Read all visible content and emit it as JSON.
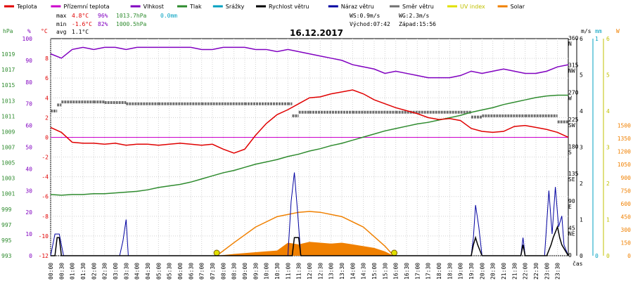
{
  "title": "16.12.2017",
  "legend": [
    {
      "label": "Teplota",
      "color": "#e00000"
    },
    {
      "label": "Přízemní teplota",
      "color": "#cc00cc"
    },
    {
      "label": "Vlhkost",
      "color": "#8000c0"
    },
    {
      "label": "Tlak",
      "color": "#2e8b2e"
    },
    {
      "label": "Srážky",
      "color": "#00a0c0"
    },
    {
      "label": "Rychlost větru",
      "color": "#000000"
    },
    {
      "label": "Náraz větru",
      "color": "#0000a0"
    },
    {
      "label": "Směr větru",
      "color": "#707070"
    },
    {
      "label": "UV index",
      "color": "#e0e000"
    },
    {
      "label": "Solar",
      "color": "#f08000"
    }
  ],
  "stats": {
    "max_label": "max",
    "max_temp": "4.8°C",
    "max_hum": "96%",
    "max_press": "1013.7hPa",
    "max_rain": "0.0mm",
    "min_label": "min",
    "min_temp": "-1.6°C",
    "min_hum": "82%",
    "min_press": "1000.5hPa",
    "avg_label": "avg",
    "avg_temp": "1.1°C",
    "ws": "WS:0.9m/s",
    "wg": "WG:2.3m/s",
    "sunrise": "Východ:07:42",
    "sunset": "Západ:15:56"
  },
  "colors": {
    "temp": "#e00000",
    "dew": "#cc00cc",
    "hum": "#8000c0",
    "press": "#2e8b2e",
    "rain": "#00a0c0",
    "wind": "#000000",
    "gust": "#0000a0",
    "dir": "#707070",
    "uv": "#e0e000",
    "solar": "#f08000",
    "grid": "#d0d0d0"
  },
  "chart_data": {
    "type": "line",
    "title": "16.12.2017",
    "xlabel": "čas",
    "x_ticks": [
      "00:00",
      "00:30",
      "01:00",
      "01:30",
      "02:00",
      "02:30",
      "03:00",
      "03:30",
      "04:00",
      "04:30",
      "05:00",
      "05:30",
      "06:00",
      "06:30",
      "07:00",
      "07:30",
      "08:00",
      "08:30",
      "09:00",
      "09:30",
      "10:00",
      "10:30",
      "11:00",
      "11:30",
      "12:00",
      "12:30",
      "13:00",
      "13:30",
      "14:00",
      "14:30",
      "15:00",
      "15:30",
      "16:00",
      "16:30",
      "17:00",
      "17:30",
      "18:00",
      "18:30",
      "19:00",
      "19:30",
      "20:00",
      "20:30",
      "21:00",
      "21:30",
      "22:00",
      "22:30",
      "23:00",
      "23:30"
    ],
    "axes": {
      "pressure": {
        "unit": "hPa",
        "range": [
          993,
          1021
        ],
        "ticks": [
          993,
          995,
          997,
          999,
          1001,
          1003,
          1005,
          1007,
          1009,
          1011,
          1013,
          1015,
          1017,
          1019
        ]
      },
      "humidity": {
        "unit": "%",
        "range": [
          0,
          100
        ],
        "ticks": [
          0,
          10,
          20,
          30,
          40,
          50,
          60,
          70,
          80,
          90,
          100
        ]
      },
      "temperature": {
        "unit": "°C",
        "range": [
          -12,
          10
        ],
        "ticks": [
          -12,
          -10,
          -8,
          -6,
          -4,
          -2,
          0,
          2,
          4,
          6,
          8
        ]
      },
      "wind_speed": {
        "unit": "m/s",
        "range": [
          0,
          6
        ],
        "ticks": [
          0,
          1,
          2,
          3,
          4,
          5,
          6
        ]
      },
      "wind_direction": {
        "ticks": [
          {
            "v": "0",
            "l": ""
          },
          {
            "v": "45",
            "l": "NE"
          },
          {
            "v": "90",
            "l": "E"
          },
          {
            "v": "135",
            "l": "SE"
          },
          {
            "v": "180",
            "l": "S"
          },
          {
            "v": "225",
            "l": "SW"
          },
          {
            "v": "270",
            "l": "W"
          },
          {
            "v": "315",
            "l": "NW"
          },
          {
            "v": "360",
            "l": "N"
          }
        ]
      },
      "rain": {
        "unit": "mm",
        "range": [
          0,
          1
        ],
        "ticks": [
          0,
          1
        ]
      },
      "uv": {
        "unit": "",
        "ticks": [
          0,
          1,
          2,
          3,
          4,
          5,
          6
        ]
      },
      "solar": {
        "unit": "W",
        "range": [
          0,
          2500
        ],
        "ticks": [
          0,
          150,
          300,
          450,
          600,
          750,
          900,
          1050,
          1200,
          1350,
          1500
        ]
      }
    },
    "series": [
      {
        "name": "Teplota",
        "axis": "temperature",
        "x": [
          0,
          0.5,
          1,
          1.5,
          2,
          2.5,
          3,
          3.5,
          4,
          4.5,
          5,
          5.5,
          6,
          6.5,
          7,
          7.5,
          8,
          8.5,
          9,
          9.5,
          10,
          10.5,
          11,
          11.5,
          12,
          12.5,
          13,
          13.5,
          14,
          14.5,
          15,
          15.5,
          16,
          16.5,
          17,
          17.5,
          18,
          18.5,
          19,
          19.5,
          20,
          20.5,
          21,
          21.5,
          22,
          22.5,
          23,
          23.5,
          24
        ],
        "y": [
          1.0,
          0.5,
          -0.5,
          -0.6,
          -0.6,
          -0.7,
          -0.6,
          -0.8,
          -0.7,
          -0.7,
          -0.8,
          -0.7,
          -0.6,
          -0.7,
          -0.8,
          -0.7,
          -1.2,
          -1.6,
          -1.2,
          0.2,
          1.4,
          2.3,
          2.8,
          3.4,
          4.0,
          4.1,
          4.4,
          4.6,
          4.8,
          4.4,
          3.8,
          3.4,
          3.0,
          2.7,
          2.4,
          2.0,
          1.8,
          1.9,
          1.7,
          0.9,
          0.6,
          0.5,
          0.6,
          1.1,
          1.2,
          1.0,
          0.8,
          0.5,
          0.0
        ]
      },
      {
        "name": "Vlhkost",
        "axis": "humidity",
        "x": [
          0,
          0.5,
          1,
          1.5,
          2,
          2.5,
          3,
          3.5,
          4,
          4.5,
          5,
          5.5,
          6,
          6.5,
          7,
          7.5,
          8,
          8.5,
          9,
          9.5,
          10,
          10.5,
          11,
          11.5,
          12,
          12.5,
          13,
          13.5,
          14,
          14.5,
          15,
          15.5,
          16,
          16.5,
          17,
          17.5,
          18,
          18.5,
          19,
          19.5,
          20,
          20.5,
          21,
          21.5,
          22,
          22.5,
          23,
          23.5,
          24
        ],
        "y": [
          93,
          91,
          95,
          96,
          95,
          96,
          96,
          95,
          96,
          96,
          96,
          96,
          96,
          96,
          95,
          95,
          96,
          96,
          96,
          95,
          95,
          94,
          95,
          94,
          93,
          92,
          91,
          90,
          88,
          87,
          86,
          84,
          85,
          84,
          83,
          82,
          82,
          82,
          83,
          85,
          84,
          85,
          86,
          85,
          84,
          84,
          85,
          87,
          88
        ]
      },
      {
        "name": "Tlak",
        "axis": "pressure",
        "x": [
          0,
          0.5,
          1,
          1.5,
          2,
          2.5,
          3,
          3.5,
          4,
          4.5,
          5,
          5.5,
          6,
          6.5,
          7,
          7.5,
          8,
          8.5,
          9,
          9.5,
          10,
          10.5,
          11,
          11.5,
          12,
          12.5,
          13,
          13.5,
          14,
          14.5,
          15,
          15.5,
          16,
          16.5,
          17,
          17.5,
          18,
          18.5,
          19,
          19.5,
          20,
          20.5,
          21,
          21.5,
          22,
          22.5,
          23,
          23.5,
          24
        ],
        "y": [
          1000.9,
          1000.8,
          1000.9,
          1000.9,
          1001.0,
          1001.0,
          1001.1,
          1001.2,
          1001.3,
          1001.5,
          1001.8,
          1002.0,
          1002.2,
          1002.5,
          1002.9,
          1003.3,
          1003.7,
          1004.0,
          1004.4,
          1004.8,
          1005.1,
          1005.4,
          1005.8,
          1006.1,
          1006.5,
          1006.8,
          1007.2,
          1007.5,
          1007.9,
          1008.3,
          1008.7,
          1009.1,
          1009.4,
          1009.7,
          1010.0,
          1010.2,
          1010.5,
          1010.8,
          1011.1,
          1011.5,
          1011.8,
          1012.1,
          1012.5,
          1012.8,
          1013.1,
          1013.4,
          1013.6,
          1013.7,
          1013.7
        ]
      },
      {
        "name": "Přízemní teplota",
        "axis": "temperature",
        "x": [
          0,
          24
        ],
        "y": [
          0,
          0
        ]
      },
      {
        "name": "Směr větru",
        "axis": "wind_direction",
        "x": [
          0,
          0.3,
          0.5,
          2.0,
          2.5,
          3.5,
          5.0,
          7.0,
          9.0,
          11.0,
          11.2,
          11.5,
          12.0,
          14.0,
          16.0,
          19.0,
          19.5,
          20.0,
          22.0,
          23.5,
          24
        ],
        "y": [
          240,
          250,
          255,
          255,
          254,
          252,
          252,
          252,
          252,
          252,
          232,
          238,
          238,
          238,
          238,
          238,
          230,
          232,
          232,
          222,
          222
        ]
      },
      {
        "name": "Rychlost větru",
        "axis": "wind_speed",
        "x": [
          0,
          0.2,
          0.3,
          0.4,
          0.5,
          11.0,
          11.2,
          11.3,
          11.5,
          11.6,
          19.5,
          19.6,
          19.7,
          19.8,
          20.0,
          21.8,
          21.9,
          22.0,
          23.0,
          23.2,
          23.3,
          23.5,
          23.6,
          23.7,
          24
        ],
        "y": [
          0,
          0,
          0.5,
          0.5,
          0,
          0,
          0,
          0.5,
          0.5,
          0,
          0,
          0.3,
          0.5,
          0.3,
          0,
          0,
          0.3,
          0,
          0,
          0.3,
          0.5,
          0.8,
          0.5,
          0.3,
          0
        ]
      },
      {
        "name": "Náraz větru",
        "axis": "wind_speed",
        "x": [
          0,
          0.2,
          0.4,
          0.6,
          3.2,
          3.35,
          3.5,
          3.6,
          11.0,
          11.15,
          11.3,
          11.45,
          11.6,
          19.5,
          19.6,
          19.7,
          19.85,
          20.0,
          21.8,
          21.9,
          22.0,
          22.9,
          23.0,
          23.1,
          23.25,
          23.4,
          23.55,
          23.7,
          23.8,
          24
        ],
        "y": [
          0,
          0.6,
          0.6,
          0,
          0,
          0.4,
          1.0,
          0,
          0,
          1.5,
          2.3,
          1.2,
          0,
          0,
          0.5,
          1.4,
          0.8,
          0,
          0,
          0.5,
          0,
          0,
          0.9,
          1.8,
          0.6,
          1.9,
          0.8,
          1.1,
          0.3,
          0
        ]
      },
      {
        "name": "Solar",
        "axis": "solar",
        "x": [
          7.7,
          8.5,
          9.5,
          10.5,
          11.0,
          11.5,
          12.0,
          12.5,
          13.0,
          13.5,
          14.0,
          14.5,
          15.0,
          15.5,
          15.9
        ],
        "y": [
          0,
          20,
          40,
          60,
          150,
          130,
          160,
          150,
          140,
          150,
          130,
          110,
          90,
          50,
          0
        ]
      },
      {
        "name": "Solar max",
        "axis": "solar",
        "x": [
          7.7,
          8.5,
          9.5,
          10.5,
          11.5,
          12.0,
          12.5,
          13.5,
          14.5,
          15.5,
          15.9
        ],
        "y": [
          0,
          150,
          330,
          450,
          500,
          510,
          500,
          450,
          330,
          110,
          0
        ]
      }
    ],
    "markers": [
      {
        "label": "sunrise",
        "x": 7.7
      },
      {
        "label": "sunset",
        "x": 15.93
      }
    ]
  }
}
